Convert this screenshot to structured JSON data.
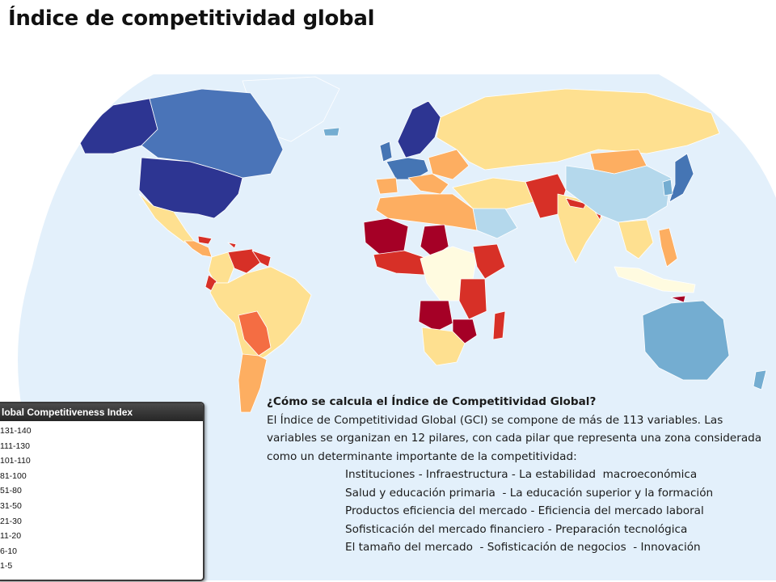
{
  "title": "Índice de competitividad global",
  "legend": {
    "title": "lobal Competitiveness Index",
    "items": [
      {
        "label": "131-140",
        "color": "#a50026"
      },
      {
        "label": "111-130",
        "color": "#d73027"
      },
      {
        "label": "101-110",
        "color": "#f46d43"
      },
      {
        "label": "81-100",
        "color": "#fdae61"
      },
      {
        "label": "51-80",
        "color": "#fee090"
      },
      {
        "label": "31-50",
        "color": "#fffbe0"
      },
      {
        "label": "21-30",
        "color": "#b4d8ec"
      },
      {
        "label": "11-20",
        "color": "#74add1"
      },
      {
        "label": "6-10",
        "color": "#4575b4"
      },
      {
        "label": "1-5",
        "color": "#2d3592"
      }
    ]
  },
  "info": {
    "question": "¿Cómo se calcula el Índice de Competitividad Global?",
    "paragraph": "El Índice de Competitividad Global (GCI) se compone de más de 113 variables. Las variables se organizan en 12 pilares, con cada pilar que representa una zona considerada como un determinante importante de la competitividad:",
    "pillars": [
      "Instituciones - Infraestructura - La estabilidad  macroeconómica",
      "Salud y educación primaria  - La educación superior y la formación",
      "Productos eficiencia del mercado - Eficiencia del mercado laboral",
      "Sofisticación del mercado financiero - Preparación tecnológica",
      "El tamaño del mercado  - Sofisticación de negocios  - Innovación"
    ]
  },
  "map": {
    "ocean_color": "#e3f0fb",
    "land_colors": {
      "north_america_north": "#4a74b8",
      "alaska": "#2d3592",
      "usa": "#2d3592",
      "mexico": "#fee090",
      "central_america": "#fdae61",
      "venezuela": "#d73027",
      "colombia": "#fee090",
      "south_america": "#fee090",
      "bolivia_paraguay": "#f46d43",
      "argentina": "#fdae61",
      "greenland": "#e3f0fb",
      "iceland": "#74add1",
      "scandinavia": "#2d3592",
      "western_europe": "#4575b4",
      "southern_europe": "#fdae61",
      "eastern_europe": "#fdae61",
      "russia": "#fee090",
      "north_africa": "#fdae61",
      "west_africa_sahel": "#a50026",
      "central_africa": "#fffbe0",
      "east_africa": "#d73027",
      "southern_africa": "#a50026",
      "south_africa": "#fee090",
      "madagascar": "#d73027",
      "middle_east": "#fee090",
      "saudi_arabia": "#b4d8ec",
      "pakistan": "#d73027",
      "india": "#fee090",
      "mongolia": "#fdae61",
      "china": "#b4d8ec",
      "japan": "#4575b4",
      "korea": "#74add1",
      "southeast_asia": "#fee090",
      "philippines": "#fdae61",
      "indonesia": "#fffbe0",
      "australia": "#74add1",
      "new_zealand": "#74add1"
    }
  }
}
